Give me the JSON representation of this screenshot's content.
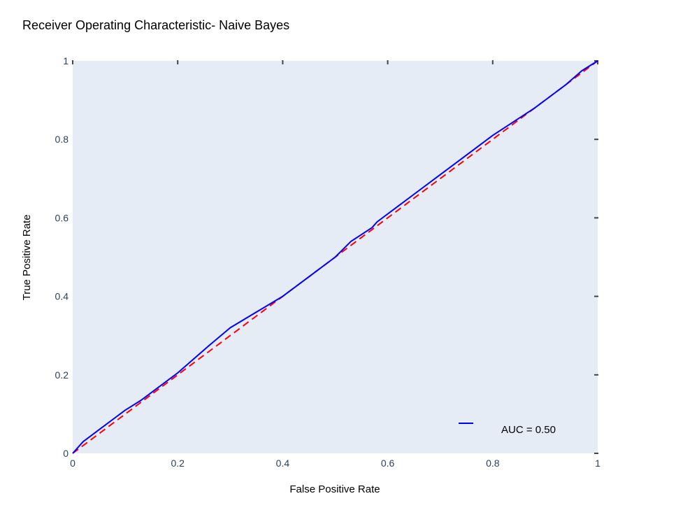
{
  "chart_data": {
    "type": "line",
    "title": "Receiver Operating Characteristic- Naive Bayes",
    "xlabel": "False Positive Rate",
    "ylabel": "True Positive Rate",
    "xlim": [
      0,
      1
    ],
    "ylim": [
      0,
      1
    ],
    "x_ticks": [
      "0",
      "0.2",
      "0.4",
      "0.6",
      "0.8",
      "1"
    ],
    "y_ticks": [
      "0",
      "0.2",
      "0.4",
      "0.6",
      "0.8",
      "1"
    ],
    "grid": false,
    "plot_background": "#e5ecf6",
    "legend_placement": "bottom-right",
    "series": [
      {
        "name": "AUC = 0.50",
        "color": "#0000ff",
        "dash": "solid",
        "x": [
          0,
          0.02,
          0.05,
          0.08,
          0.1,
          0.13,
          0.16,
          0.2,
          0.23,
          0.26,
          0.3,
          0.35,
          0.4,
          0.45,
          0.5,
          0.53,
          0.57,
          0.58,
          0.62,
          0.66,
          0.7,
          0.75,
          0.8,
          0.84,
          0.88,
          0.91,
          0.94,
          0.97,
          1
        ],
        "y": [
          0,
          0.03,
          0.06,
          0.09,
          0.11,
          0.135,
          0.165,
          0.205,
          0.24,
          0.275,
          0.32,
          0.36,
          0.4,
          0.45,
          0.5,
          0.54,
          0.575,
          0.59,
          0.63,
          0.67,
          0.71,
          0.76,
          0.81,
          0.845,
          0.88,
          0.91,
          0.94,
          0.975,
          1
        ]
      },
      {
        "color": "#ff0000",
        "dash": "dashed",
        "x": [
          0,
          1
        ],
        "y": [
          0,
          1
        ]
      }
    ]
  }
}
